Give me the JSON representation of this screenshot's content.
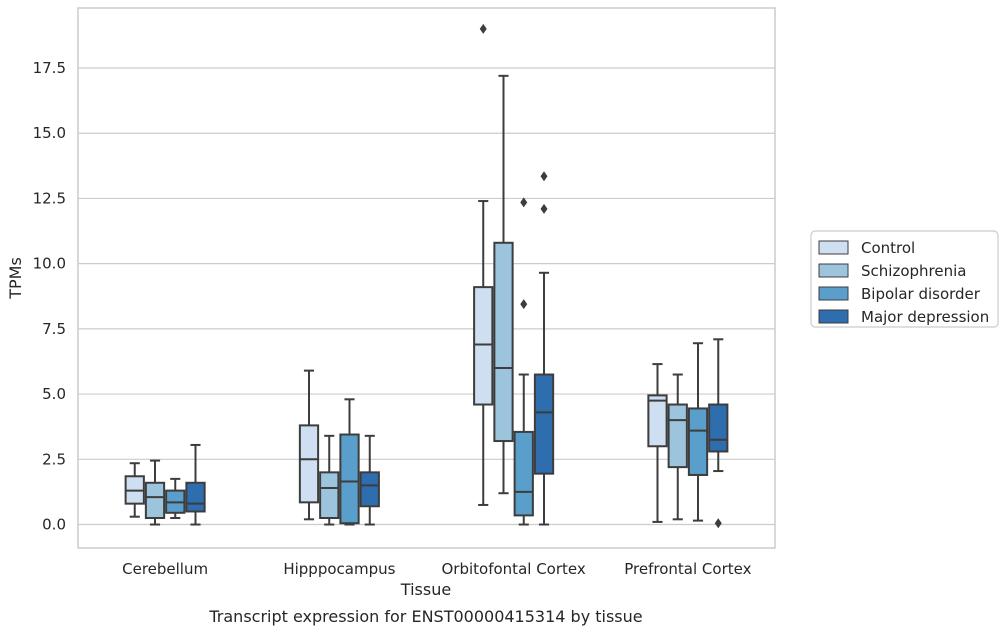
{
  "caption": "Transcript expression for ENST00000415314 by tissue",
  "chart_data": {
    "type": "box",
    "title": "",
    "xlabel": "Tissue",
    "ylabel": "TPMs",
    "ylim": [
      -0.9,
      19.8
    ],
    "yticks": [
      "0.0",
      "2.5",
      "5.0",
      "7.5",
      "10.0",
      "12.5",
      "15.0",
      "17.5"
    ],
    "grid": "horizontal",
    "legend_position": "right",
    "categories": [
      "Cerebellum",
      "Hipppocampus",
      "Orbitofontal Cortex",
      "Prefrontal Cortex"
    ],
    "series": [
      {
        "name": "Control",
        "color": "#cddff0",
        "boxes": [
          {
            "whislo": 0.3,
            "q1": 0.8,
            "med": 1.3,
            "q3": 1.85,
            "whishi": 2.35,
            "fliers": []
          },
          {
            "whislo": 0.2,
            "q1": 0.85,
            "med": 2.5,
            "q3": 3.8,
            "whishi": 5.9,
            "fliers": []
          },
          {
            "whislo": 0.75,
            "q1": 4.6,
            "med": 6.9,
            "q3": 9.1,
            "whishi": 12.4,
            "fliers": [
              19.0
            ]
          },
          {
            "whislo": 0.1,
            "q1": 3.0,
            "med": 4.75,
            "q3": 4.95,
            "whishi": 6.15,
            "fliers": []
          }
        ]
      },
      {
        "name": "Schizophrenia",
        "color": "#9cc4dd",
        "boxes": [
          {
            "whislo": 0.0,
            "q1": 0.25,
            "med": 1.05,
            "q3": 1.6,
            "whishi": 2.45,
            "fliers": []
          },
          {
            "whislo": 0.0,
            "q1": 0.25,
            "med": 1.4,
            "q3": 2.0,
            "whishi": 3.4,
            "fliers": []
          },
          {
            "whislo": 1.2,
            "q1": 3.2,
            "med": 6.0,
            "q3": 10.8,
            "whishi": 17.2,
            "fliers": []
          },
          {
            "whislo": 0.2,
            "q1": 2.2,
            "med": 4.0,
            "q3": 4.6,
            "whishi": 5.75,
            "fliers": []
          }
        ]
      },
      {
        "name": "Bipolar disorder",
        "color": "#5a9fcb",
        "boxes": [
          {
            "whislo": 0.25,
            "q1": 0.45,
            "med": 0.85,
            "q3": 1.3,
            "whishi": 1.75,
            "fliers": []
          },
          {
            "whislo": 0.0,
            "q1": 0.05,
            "med": 1.65,
            "q3": 3.45,
            "whishi": 4.8,
            "fliers": []
          },
          {
            "whislo": 0.0,
            "q1": 0.35,
            "med": 1.25,
            "q3": 3.55,
            "whishi": 5.75,
            "fliers": [
              8.45,
              12.35
            ]
          },
          {
            "whislo": 0.15,
            "q1": 1.9,
            "med": 3.6,
            "q3": 4.45,
            "whishi": 6.95,
            "fliers": []
          }
        ]
      },
      {
        "name": "Major depression",
        "color": "#2e6dae",
        "boxes": [
          {
            "whislo": 0.0,
            "q1": 0.5,
            "med": 0.8,
            "q3": 1.6,
            "whishi": 3.05,
            "fliers": []
          },
          {
            "whislo": 0.0,
            "q1": 0.7,
            "med": 1.5,
            "q3": 2.0,
            "whishi": 3.4,
            "fliers": []
          },
          {
            "whislo": 0.0,
            "q1": 1.95,
            "med": 4.3,
            "q3": 5.75,
            "whishi": 9.65,
            "fliers": [
              12.1,
              13.35
            ]
          },
          {
            "whislo": 2.05,
            "q1": 2.8,
            "med": 3.25,
            "q3": 4.6,
            "whishi": 7.1,
            "fliers": [
              0.05
            ]
          }
        ]
      }
    ]
  }
}
